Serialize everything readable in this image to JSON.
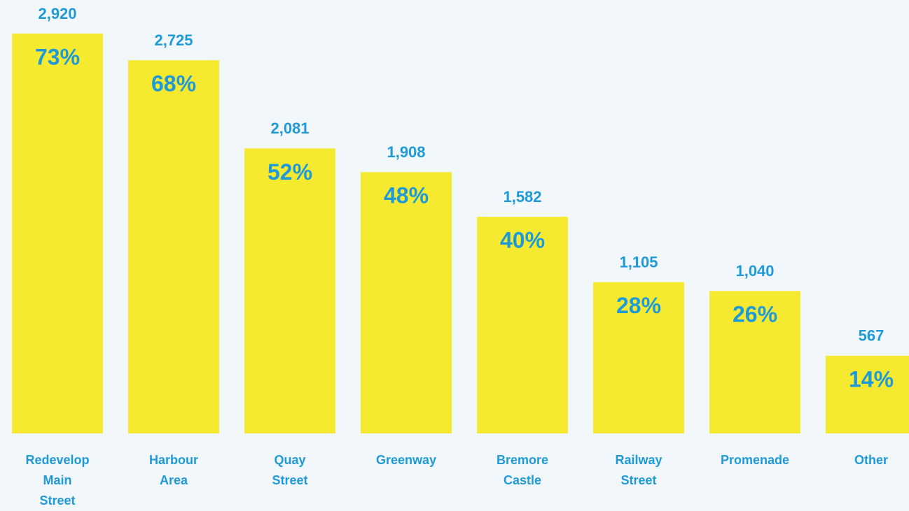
{
  "chart_data": {
    "type": "bar",
    "categories": [
      "Redevelop Main Street",
      "Harbour Area",
      "Quay Street",
      "Greenway",
      "Bremore Castle",
      "Railway Street",
      "Promenade",
      "Other"
    ],
    "values": [
      2920,
      2725,
      2081,
      1908,
      1582,
      1105,
      1040,
      567
    ],
    "value_labels": [
      "2,920",
      "2,725",
      "2,081",
      "1,908",
      "1,582",
      "1,105",
      "1,040",
      "567"
    ],
    "percentages": [
      73,
      68,
      52,
      48,
      40,
      28,
      26,
      14
    ],
    "percentage_labels": [
      "73%",
      "68%",
      "52%",
      "48%",
      "40%",
      "28%",
      "26%",
      "14%"
    ],
    "color": "#f5ea2f",
    "label_color": "#1f9ad8"
  }
}
